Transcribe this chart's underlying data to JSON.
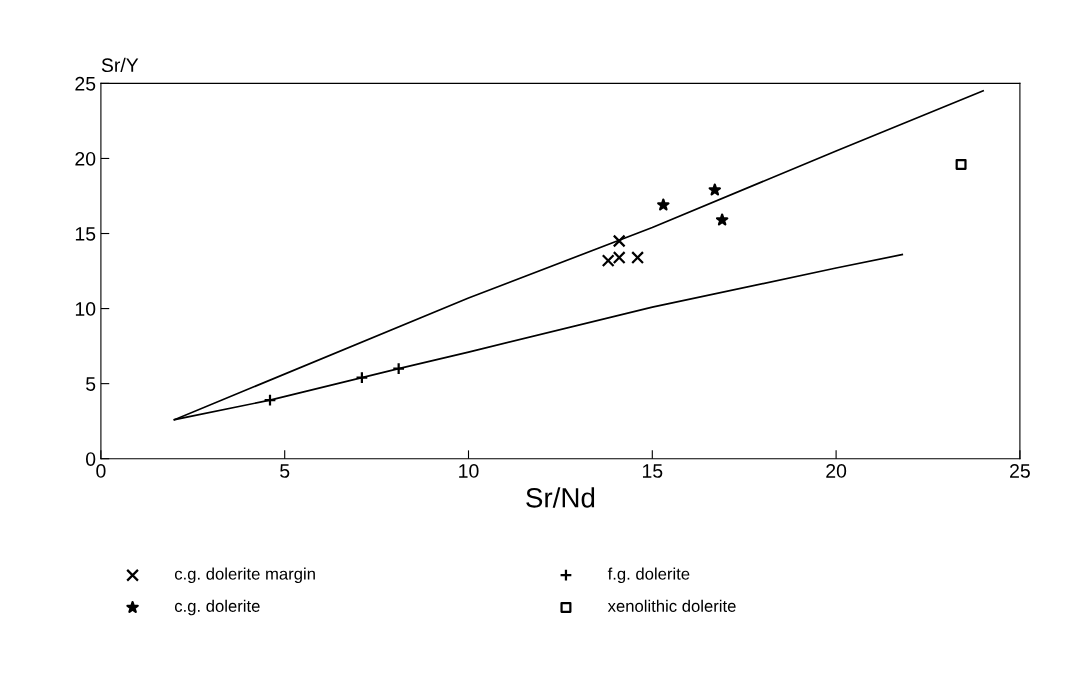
{
  "chart_data": {
    "type": "scatter",
    "xlabel": "Sr/Nd",
    "ylabel": "Sr/Y",
    "xlim": [
      0,
      25
    ],
    "ylim": [
      0,
      25
    ],
    "xticks": [
      0,
      5,
      10,
      15,
      20,
      25
    ],
    "yticks": [
      0,
      5,
      10,
      15,
      20,
      25
    ],
    "grid": false,
    "legend": "bottom",
    "series": [
      {
        "name": "c.g. dolerite margin",
        "color": "#000000",
        "marker": "cross",
        "x": [
          13.8,
          14.1,
          14.6,
          14.1
        ],
        "values": [
          13.2,
          13.4,
          13.4,
          14.5
        ]
      },
      {
        "name": "f.g. dolerite",
        "color": "#000000",
        "marker": "plus",
        "x": [
          4.6,
          7.1,
          8.1
        ],
        "values": [
          3.9,
          5.4,
          6.0
        ]
      },
      {
        "name": "c.g. dolerite",
        "color": "#000000",
        "marker": "star",
        "x": [
          15.3,
          16.7,
          16.9
        ],
        "values": [
          16.9,
          17.9,
          15.9
        ]
      },
      {
        "name": "xenolithic dolerite",
        "color": "#000000",
        "marker": "square",
        "x": [
          23.4
        ],
        "values": [
          19.6
        ]
      },
      {
        "type": "line",
        "color": "#000000",
        "marker": "none",
        "x": [
          2.0,
          10,
          15,
          20,
          24.0
        ],
        "values": [
          2.6,
          10.7,
          15.4,
          20.5,
          24.5
        ]
      },
      {
        "type": "line",
        "color": "#000000",
        "marker": "none",
        "x": [
          2.0,
          4.6,
          7.1,
          8.1,
          10,
          15,
          20,
          21.8
        ],
        "values": [
          2.6,
          3.9,
          5.4,
          6.0,
          7.1,
          10.1,
          12.7,
          13.6
        ]
      }
    ]
  }
}
